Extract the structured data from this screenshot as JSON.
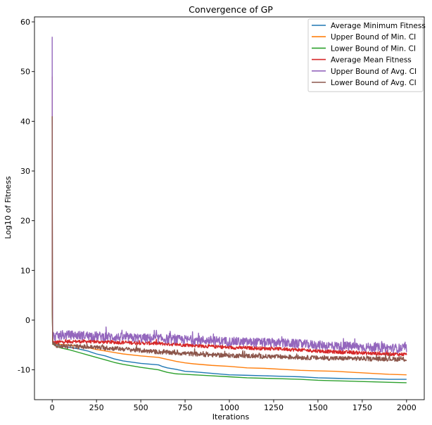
{
  "chart_data": {
    "type": "line",
    "title": "Convergence of GP",
    "xlabel": "Iterations",
    "ylabel": "Log10 of Fitness",
    "xlim": [
      -100,
      2100
    ],
    "ylim": [
      -16,
      61
    ],
    "xticks": [
      0,
      250,
      500,
      750,
      1000,
      1250,
      1500,
      1750,
      2000
    ],
    "yticks": [
      -10,
      0,
      10,
      20,
      30,
      40,
      50,
      60
    ],
    "grid": false,
    "legend_position": "top-right",
    "series": [
      {
        "name": "Average Minimum Fitness",
        "color": "#1f77b4",
        "noise": 0,
        "x": [
          0,
          1,
          3,
          10,
          50,
          100,
          150,
          200,
          250,
          300,
          350,
          400,
          500,
          600,
          620,
          650,
          700,
          750,
          800,
          900,
          1000,
          1100,
          1200,
          1300,
          1400,
          1450,
          1500,
          1600,
          1700,
          1800,
          1900,
          2000
        ],
        "y": [
          41,
          2,
          -4.5,
          -4.8,
          -5.2,
          -5.5,
          -5.8,
          -6.2,
          -6.8,
          -7.2,
          -7.8,
          -8.2,
          -8.7,
          -9.0,
          -9.3,
          -9.6,
          -9.9,
          -10.3,
          -10.4,
          -10.7,
          -11.0,
          -11.1,
          -11.2,
          -11.3,
          -11.4,
          -11.5,
          -11.6,
          -11.7,
          -11.8,
          -11.8,
          -11.9,
          -11.9
        ]
      },
      {
        "name": "Upper Bound of Min. CI",
        "color": "#ff7f0e",
        "noise": 0,
        "x": [
          0,
          1,
          3,
          10,
          50,
          100,
          150,
          200,
          250,
          300,
          350,
          400,
          500,
          600,
          650,
          700,
          750,
          800,
          900,
          1000,
          1100,
          1200,
          1300,
          1400,
          1500,
          1600,
          1700,
          1800,
          1900,
          2000
        ],
        "y": [
          41,
          2,
          -4.5,
          -4.7,
          -4.9,
          -5.0,
          -5.2,
          -5.5,
          -5.9,
          -6.2,
          -6.5,
          -6.8,
          -7.2,
          -7.5,
          -7.9,
          -8.3,
          -8.6,
          -8.8,
          -9.1,
          -9.3,
          -9.6,
          -9.7,
          -9.9,
          -10.1,
          -10.2,
          -10.3,
          -10.5,
          -10.7,
          -10.9,
          -11.0
        ]
      },
      {
        "name": "Lower Bound of Min. CI",
        "color": "#2ca02c",
        "noise": 0,
        "x": [
          0,
          1,
          3,
          10,
          50,
          100,
          150,
          200,
          250,
          300,
          350,
          400,
          500,
          600,
          620,
          650,
          700,
          800,
          900,
          1000,
          1100,
          1200,
          1300,
          1400,
          1500,
          1600,
          1700,
          1800,
          1900,
          2000
        ],
        "y": [
          41,
          2,
          -4.6,
          -5.0,
          -5.6,
          -6.0,
          -6.5,
          -7.0,
          -7.5,
          -8.0,
          -8.5,
          -8.9,
          -9.5,
          -10.0,
          -10.2,
          -10.5,
          -10.8,
          -11.0,
          -11.2,
          -11.4,
          -11.6,
          -11.7,
          -11.8,
          -11.9,
          -12.1,
          -12.2,
          -12.3,
          -12.4,
          -12.5,
          -12.6
        ]
      },
      {
        "name": "Average Mean Fitness",
        "color": "#d62728",
        "noise": 0.35,
        "x": [
          0,
          1,
          3,
          10,
          50,
          100,
          200,
          300,
          400,
          500,
          600,
          700,
          800,
          900,
          1000,
          1100,
          1200,
          1300,
          1400,
          1500,
          1600,
          1700,
          1800,
          1900,
          2000
        ],
        "y": [
          49,
          5,
          -4.3,
          -4.5,
          -4.4,
          -4.3,
          -4.3,
          -4.4,
          -4.5,
          -4.6,
          -4.7,
          -4.9,
          -5.1,
          -5.3,
          -5.5,
          -5.6,
          -5.7,
          -5.8,
          -6.0,
          -6.2,
          -6.4,
          -6.5,
          -6.7,
          -6.8,
          -6.9
        ]
      },
      {
        "name": "Upper Bound of Avg. CI",
        "color": "#9467bd",
        "noise": 0.9,
        "x": [
          0,
          1,
          3,
          10,
          50,
          100,
          200,
          300,
          400,
          500,
          600,
          700,
          800,
          900,
          1000,
          1100,
          1200,
          1300,
          1400,
          1500,
          1600,
          1700,
          1800,
          1900,
          2000
        ],
        "y": [
          57,
          8,
          -3.0,
          -3.3,
          -3.1,
          -3.0,
          -3.1,
          -3.3,
          -3.5,
          -3.6,
          -3.7,
          -3.9,
          -4.0,
          -4.1,
          -4.3,
          -4.4,
          -4.5,
          -4.6,
          -4.8,
          -5.0,
          -5.2,
          -5.3,
          -5.5,
          -5.6,
          -5.7
        ]
      },
      {
        "name": "Lower Bound of Avg. CI",
        "color": "#8c564b",
        "noise": 0.45,
        "x": [
          0,
          1,
          3,
          10,
          50,
          100,
          200,
          300,
          400,
          500,
          600,
          700,
          800,
          900,
          1000,
          1100,
          1200,
          1300,
          1400,
          1500,
          1600,
          1700,
          1800,
          1900,
          2000
        ],
        "y": [
          41,
          2,
          -4.9,
          -5.0,
          -5.2,
          -5.3,
          -5.4,
          -5.6,
          -5.8,
          -6.1,
          -6.4,
          -6.6,
          -6.8,
          -7.0,
          -7.1,
          -7.2,
          -7.3,
          -7.4,
          -7.5,
          -7.6,
          -7.7,
          -7.7,
          -7.8,
          -7.8,
          -7.9
        ]
      }
    ]
  }
}
